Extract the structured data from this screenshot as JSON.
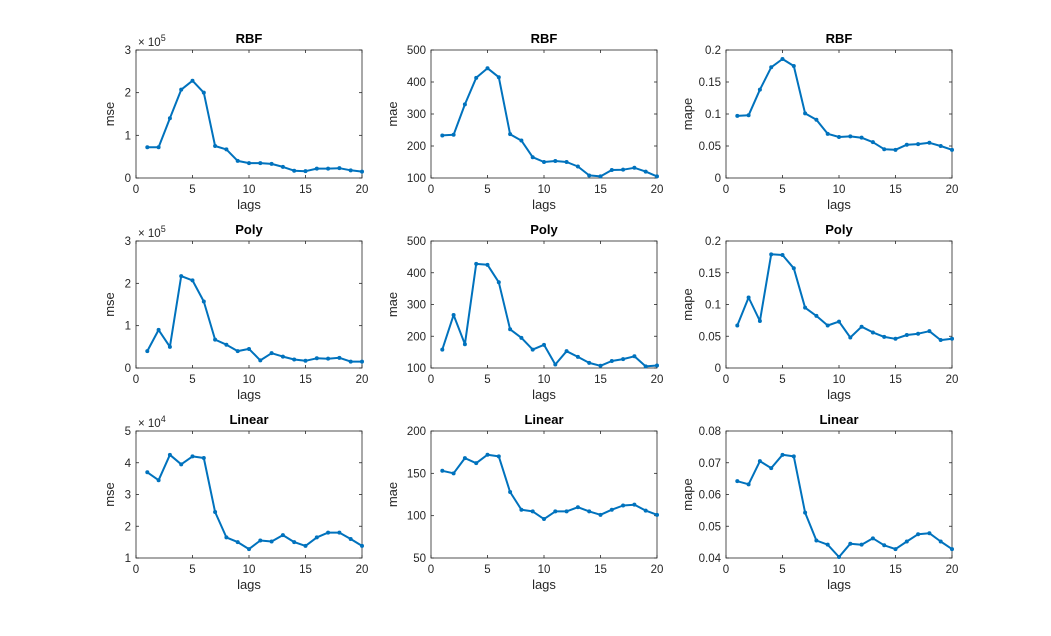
{
  "colors": {
    "series": "#0072bd",
    "axis": "#262626"
  },
  "chart_data": [
    {
      "type": "line",
      "title": "RBF",
      "xlabel": "lags",
      "ylabel": "mse",
      "xlim": [
        0,
        20
      ],
      "xticks": [
        0,
        5,
        10,
        15,
        20
      ],
      "xtick_labels": [
        "0",
        "5",
        "10",
        "15",
        "20"
      ],
      "ylim": [
        0,
        300000
      ],
      "yticks": [
        0,
        100000,
        200000,
        300000
      ],
      "ytick_labels": [
        "0",
        "1",
        "2",
        "3"
      ],
      "exponent_base": "× 10",
      "exponent": "5",
      "x": [
        1,
        2,
        3,
        4,
        5,
        6,
        7,
        8,
        9,
        10,
        11,
        12,
        13,
        14,
        15,
        16,
        17,
        18,
        19,
        20
      ],
      "y": [
        72000,
        72000,
        140000,
        207000,
        228000,
        200000,
        75000,
        67000,
        40000,
        35000,
        35000,
        33000,
        26000,
        17000,
        16000,
        22000,
        22000,
        23000,
        18000,
        15000
      ]
    },
    {
      "type": "line",
      "title": "RBF",
      "xlabel": "lags",
      "ylabel": "mae",
      "xlim": [
        0,
        20
      ],
      "xticks": [
        0,
        5,
        10,
        15,
        20
      ],
      "xtick_labels": [
        "0",
        "5",
        "10",
        "15",
        "20"
      ],
      "ylim": [
        100,
        500
      ],
      "yticks": [
        100,
        200,
        300,
        400,
        500
      ],
      "ytick_labels": [
        "100",
        "200",
        "300",
        "400",
        "500"
      ],
      "x": [
        1,
        2,
        3,
        4,
        5,
        6,
        7,
        8,
        9,
        10,
        11,
        12,
        13,
        14,
        15,
        16,
        17,
        18,
        19,
        20
      ],
      "y": [
        233,
        235,
        330,
        413,
        443,
        415,
        237,
        217,
        165,
        150,
        153,
        150,
        136,
        108,
        105,
        125,
        126,
        132,
        120,
        105
      ]
    },
    {
      "type": "line",
      "title": "RBF",
      "xlabel": "lags",
      "ylabel": "mape",
      "xlim": [
        0,
        20
      ],
      "xticks": [
        0,
        5,
        10,
        15,
        20
      ],
      "xtick_labels": [
        "0",
        "5",
        "10",
        "15",
        "20"
      ],
      "ylim": [
        0,
        0.2
      ],
      "yticks": [
        0,
        0.05,
        0.1,
        0.15,
        0.2
      ],
      "ytick_labels": [
        "0",
        "0.05",
        "0.1",
        "0.15",
        "0.2"
      ],
      "x": [
        1,
        2,
        3,
        4,
        5,
        6,
        7,
        8,
        9,
        10,
        11,
        12,
        13,
        14,
        15,
        16,
        17,
        18,
        19,
        20
      ],
      "y": [
        0.097,
        0.098,
        0.138,
        0.173,
        0.186,
        0.175,
        0.101,
        0.091,
        0.069,
        0.064,
        0.065,
        0.063,
        0.056,
        0.045,
        0.044,
        0.052,
        0.053,
        0.055,
        0.05,
        0.044
      ]
    },
    {
      "type": "line",
      "title": "Poly",
      "xlabel": "lags",
      "ylabel": "mse",
      "xlim": [
        0,
        20
      ],
      "xticks": [
        0,
        5,
        10,
        15,
        20
      ],
      "xtick_labels": [
        "0",
        "5",
        "10",
        "15",
        "20"
      ],
      "ylim": [
        0,
        300000
      ],
      "yticks": [
        0,
        100000,
        200000,
        300000
      ],
      "ytick_labels": [
        "0",
        "1",
        "2",
        "3"
      ],
      "exponent_base": "× 10",
      "exponent": "5",
      "x": [
        1,
        2,
        3,
        4,
        5,
        6,
        7,
        8,
        9,
        10,
        11,
        12,
        13,
        14,
        15,
        16,
        17,
        18,
        19,
        20
      ],
      "y": [
        40000,
        90000,
        50000,
        217000,
        207000,
        157000,
        67000,
        55000,
        40000,
        45000,
        18000,
        35000,
        27000,
        20000,
        17000,
        23000,
        22000,
        24000,
        15000,
        15000
      ]
    },
    {
      "type": "line",
      "title": "Poly",
      "xlabel": "lags",
      "ylabel": "mae",
      "xlim": [
        0,
        20
      ],
      "xticks": [
        0,
        5,
        10,
        15,
        20
      ],
      "xtick_labels": [
        "0",
        "5",
        "10",
        "15",
        "20"
      ],
      "ylim": [
        100,
        500
      ],
      "yticks": [
        100,
        200,
        300,
        400,
        500
      ],
      "ytick_labels": [
        "100",
        "200",
        "300",
        "400",
        "500"
      ],
      "x": [
        1,
        2,
        3,
        4,
        5,
        6,
        7,
        8,
        9,
        10,
        11,
        12,
        13,
        14,
        15,
        16,
        17,
        18,
        19,
        20
      ],
      "y": [
        158,
        267,
        175,
        428,
        425,
        370,
        222,
        195,
        158,
        173,
        111,
        153,
        135,
        116,
        107,
        122,
        128,
        137,
        105,
        108
      ]
    },
    {
      "type": "line",
      "title": "Poly",
      "xlabel": "lags",
      "ylabel": "mape",
      "xlim": [
        0,
        20
      ],
      "xticks": [
        0,
        5,
        10,
        15,
        20
      ],
      "xtick_labels": [
        "0",
        "5",
        "10",
        "15",
        "20"
      ],
      "ylim": [
        0,
        0.2
      ],
      "yticks": [
        0,
        0.05,
        0.1,
        0.15,
        0.2
      ],
      "ytick_labels": [
        "0",
        "0.05",
        "0.1",
        "0.15",
        "0.2"
      ],
      "x": [
        1,
        2,
        3,
        4,
        5,
        6,
        7,
        8,
        9,
        10,
        11,
        12,
        13,
        14,
        15,
        16,
        17,
        18,
        19,
        20
      ],
      "y": [
        0.067,
        0.111,
        0.074,
        0.179,
        0.178,
        0.157,
        0.095,
        0.082,
        0.067,
        0.073,
        0.048,
        0.065,
        0.056,
        0.049,
        0.046,
        0.052,
        0.054,
        0.058,
        0.044,
        0.046
      ]
    },
    {
      "type": "line",
      "title": "Linear",
      "xlabel": "lags",
      "ylabel": "mse",
      "xlim": [
        0,
        20
      ],
      "xticks": [
        0,
        5,
        10,
        15,
        20
      ],
      "xtick_labels": [
        "0",
        "5",
        "10",
        "15",
        "20"
      ],
      "ylim": [
        10000,
        50000
      ],
      "yticks": [
        10000,
        20000,
        30000,
        40000,
        50000
      ],
      "ytick_labels": [
        "1",
        "2",
        "3",
        "4",
        "5"
      ],
      "exponent_base": "× 10",
      "exponent": "4",
      "x": [
        1,
        2,
        3,
        4,
        5,
        6,
        7,
        8,
        9,
        10,
        11,
        12,
        13,
        14,
        15,
        16,
        17,
        18,
        19,
        20
      ],
      "y": [
        37000,
        34500,
        42500,
        39500,
        42000,
        41500,
        24500,
        16500,
        15000,
        12800,
        15500,
        15200,
        17200,
        15000,
        13800,
        16500,
        18000,
        18000,
        16000,
        13800
      ]
    },
    {
      "type": "line",
      "title": "Linear",
      "xlabel": "lags",
      "ylabel": "mae",
      "xlim": [
        0,
        20
      ],
      "xticks": [
        0,
        5,
        10,
        15,
        20
      ],
      "xtick_labels": [
        "0",
        "5",
        "10",
        "15",
        "20"
      ],
      "ylim": [
        50,
        200
      ],
      "yticks": [
        50,
        100,
        150,
        200
      ],
      "ytick_labels": [
        "50",
        "100",
        "150",
        "200"
      ],
      "x": [
        1,
        2,
        3,
        4,
        5,
        6,
        7,
        8,
        9,
        10,
        11,
        12,
        13,
        14,
        15,
        16,
        17,
        18,
        19,
        20
      ],
      "y": [
        153,
        150,
        168,
        162,
        172,
        170,
        128,
        107,
        105,
        96,
        105,
        105,
        110,
        105,
        101,
        107,
        112,
        113,
        106,
        101
      ]
    },
    {
      "type": "line",
      "title": "Linear",
      "xlabel": "lags",
      "ylabel": "mape",
      "xlim": [
        0,
        20
      ],
      "xticks": [
        0,
        5,
        10,
        15,
        20
      ],
      "xtick_labels": [
        "0",
        "5",
        "10",
        "15",
        "20"
      ],
      "ylim": [
        0.04,
        0.08
      ],
      "yticks": [
        0.04,
        0.05,
        0.06,
        0.07,
        0.08
      ],
      "ytick_labels": [
        "0.04",
        "0.05",
        "0.06",
        "0.07",
        "0.08"
      ],
      "x": [
        1,
        2,
        3,
        4,
        5,
        6,
        7,
        8,
        9,
        10,
        11,
        12,
        13,
        14,
        15,
        16,
        17,
        18,
        19,
        20
      ],
      "y": [
        0.0642,
        0.0632,
        0.0705,
        0.0683,
        0.0725,
        0.072,
        0.0543,
        0.0455,
        0.0442,
        0.0403,
        0.0445,
        0.0442,
        0.0462,
        0.044,
        0.0428,
        0.0452,
        0.0475,
        0.0478,
        0.0452,
        0.0428
      ]
    }
  ]
}
